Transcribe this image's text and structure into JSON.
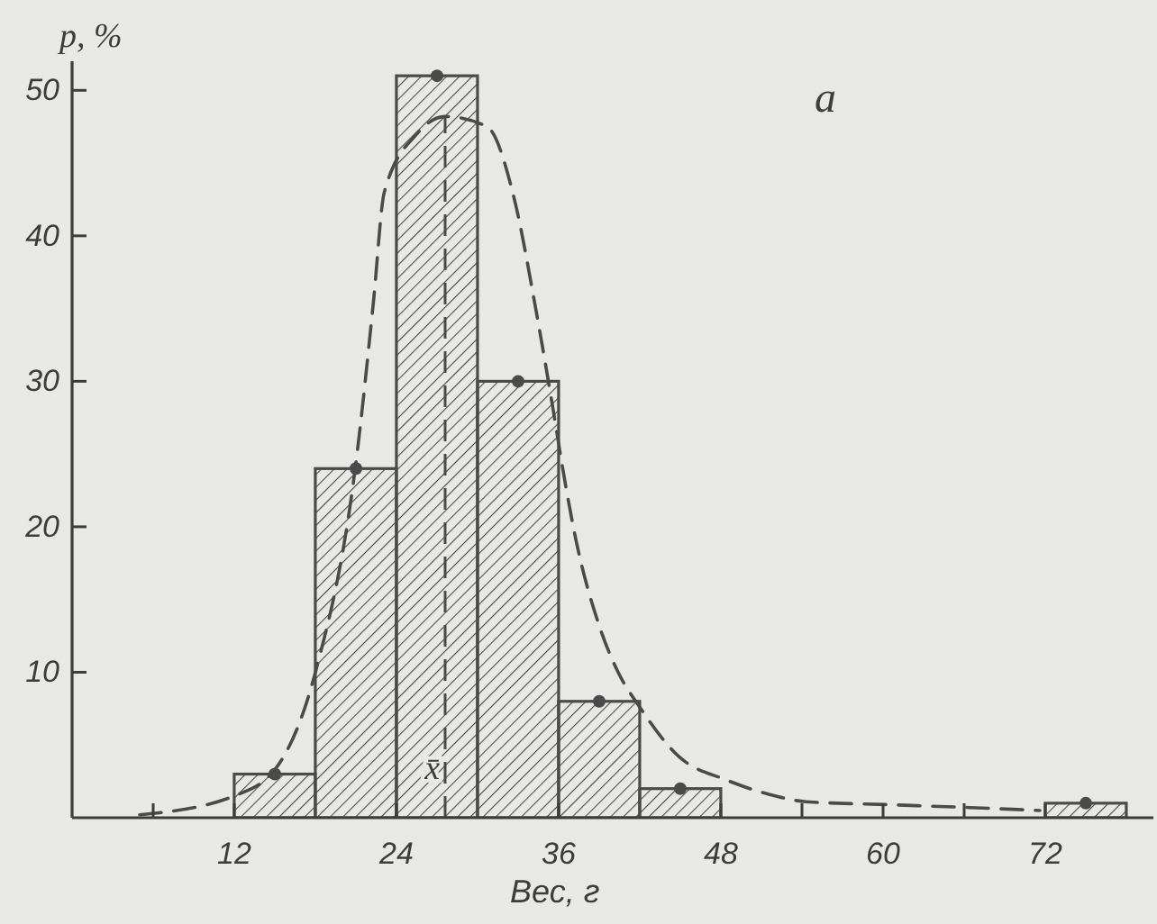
{
  "chart_data": {
    "type": "histogram",
    "xlabel": "Вес, г",
    "ylabel": "p, %",
    "annotations": [
      "а"
    ],
    "bins": [
      12,
      18,
      24,
      30,
      36,
      42,
      48,
      54,
      60,
      66,
      72,
      78
    ],
    "values": [
      3,
      24,
      51,
      30,
      8,
      2,
      0,
      0,
      0,
      0,
      1
    ],
    "color": "#4a4a4a",
    "series": [
      {
        "type": "scatter",
        "x": [
          15,
          21,
          27,
          33,
          39,
          45,
          75
        ],
        "values": [
          3,
          24,
          51,
          30,
          8,
          2,
          1
        ],
        "color": "#4a4a4a",
        "marker": "circle"
      },
      {
        "type": "line",
        "x": [
          5,
          12,
          15,
          18,
          21,
          22.3,
          23.1,
          25.5,
          27.6,
          30.7,
          32.7,
          34.3,
          35.6,
          36.3,
          37.3,
          39,
          40.4,
          42,
          44.9,
          48.4,
          51.6,
          54.3,
          60.3,
          66.4,
          71.6
        ],
        "values": [
          0.2,
          1.5,
          3.3,
          10,
          24.4,
          35.5,
          43,
          47,
          48.2,
          47.5,
          42.6,
          35,
          28,
          24,
          19,
          13.2,
          10,
          7.6,
          4.2,
          2.6,
          1.6,
          1.1,
          0.9,
          0.7,
          0.5
        ],
        "color": "#4a4a4a",
        "line_style": "dashed",
        "marker": "none"
      }
    ],
    "ref_lines": [
      {
        "axis": "x",
        "value": 27.6,
        "label": "x̄",
        "color": "#4a4a4a",
        "line_style": "dashed"
      }
    ],
    "xlim": [
      0,
      80
    ],
    "ylim": [
      0,
      52
    ],
    "xticks": [
      {
        "value": 6,
        "label": null
      },
      12,
      24,
      36,
      48,
      {
        "value": 54,
        "label": null
      },
      60,
      {
        "value": 66,
        "label": null
      },
      72
    ],
    "yticks": [
      10,
      20,
      30,
      40,
      50
    ]
  }
}
